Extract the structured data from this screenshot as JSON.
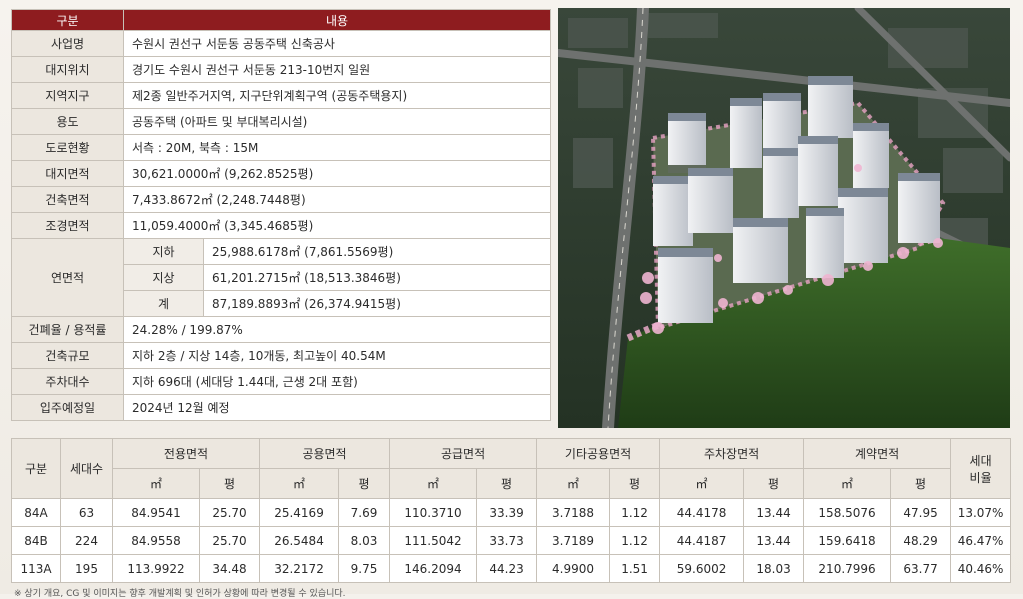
{
  "info": {
    "header": [
      "구분",
      "내용"
    ],
    "rows": [
      {
        "k": "사업명",
        "v": "수원시 권선구 서둔동 공동주택 신축공사"
      },
      {
        "k": "대지위치",
        "v": "경기도 수원시 권선구 서둔동 213-10번지 일원"
      },
      {
        "k": "지역지구",
        "v": "제2종 일반주거지역, 지구단위계획구역 (공동주택용지)"
      },
      {
        "k": "용도",
        "v": "공동주택 (아파트 및 부대복리시설)"
      },
      {
        "k": "도로현황",
        "v": "서측 : 20M, 북측 : 15M"
      },
      {
        "k": "대지면적",
        "v": "30,621.0000㎡ (9,262.8525평)"
      },
      {
        "k": "건축면적",
        "v": "7,433.8672㎡ (2,248.7448평)"
      },
      {
        "k": "조경면적",
        "v": "11,059.4000㎡ (3,345.4685평)"
      }
    ],
    "gfa": {
      "k": "연면적",
      "sub": [
        {
          "k": "지하",
          "v": "25,988.6178㎡ (7,861.5569평)"
        },
        {
          "k": "지상",
          "v": "61,201.2715㎡ (18,513.3846평)"
        },
        {
          "k": "계",
          "v": "87,189.8893㎡ (26,374.9415평)"
        }
      ]
    },
    "rows2": [
      {
        "k": "건폐율 / 용적률",
        "v": "24.28% / 199.87%"
      },
      {
        "k": "건축규모",
        "v": "지하 2층 / 지상 14층, 10개동, 최고높이 40.54M"
      },
      {
        "k": "주차대수",
        "v": "지하 696대 (세대당 1.44대, 근생 2대 포함)"
      },
      {
        "k": "입주예정일",
        "v": "2024년 12월 예정"
      }
    ]
  },
  "units": {
    "h_type": "구분",
    "h_count": "세대수",
    "groups": [
      "전용면적",
      "공용면적",
      "공급면적",
      "기타공용면적",
      "주차장면적",
      "계약면적"
    ],
    "h_ratio": "세대\n비율",
    "m2": "㎡",
    "py": "평",
    "rows": [
      [
        "84A",
        "63",
        "84.9541",
        "25.70",
        "25.4169",
        "7.69",
        "110.3710",
        "33.39",
        "3.7188",
        "1.12",
        "44.4178",
        "13.44",
        "158.5076",
        "47.95",
        "13.07%"
      ],
      [
        "84B",
        "224",
        "84.9558",
        "25.70",
        "26.5484",
        "8.03",
        "111.5042",
        "33.73",
        "3.7189",
        "1.12",
        "44.4187",
        "13.44",
        "159.6418",
        "48.29",
        "46.47%"
      ],
      [
        "113A",
        "195",
        "113.9922",
        "34.48",
        "32.2172",
        "9.75",
        "146.2094",
        "44.23",
        "4.9900",
        "1.51",
        "59.6002",
        "18.03",
        "210.7996",
        "63.77",
        "40.46%"
      ]
    ]
  },
  "footnote": "※ 상기 개요, CG 및 이미지는 향후 개발계획 및 인허가 상황에 따라 변경될 수 있습니다."
}
